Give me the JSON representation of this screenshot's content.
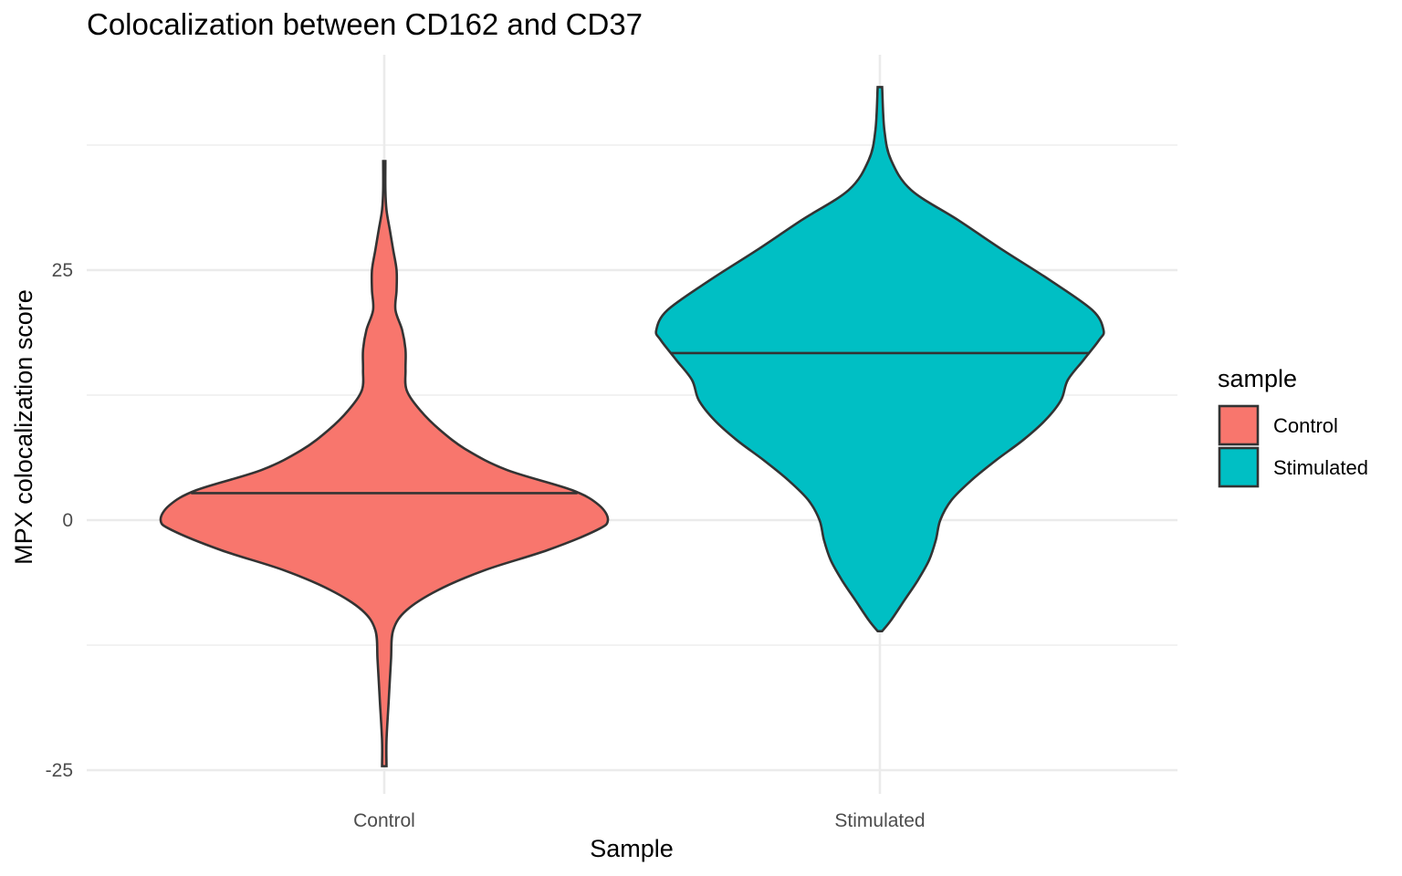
{
  "chart_data": {
    "type": "violin",
    "title": "Colocalization between CD162 and CD37",
    "xlabel": "Sample",
    "ylabel": "MPX colocalization score",
    "categories": [
      "Control",
      "Stimulated"
    ],
    "y_ticks": [
      -25,
      0,
      25
    ],
    "y_tick_labels": [
      "-25",
      "0",
      "25"
    ],
    "ylim": [
      -27.8,
      46.4
    ],
    "grid": true,
    "legend": {
      "title": "sample",
      "position": "right",
      "entries": [
        "Control",
        "Stimulated"
      ]
    },
    "colors": {
      "Control": "#F8766D",
      "Stimulated": "#00BFC4",
      "outline": "#333333",
      "grid": "#EBEBEB"
    },
    "series": [
      {
        "name": "Control",
        "median": 2.7,
        "min": -24.6,
        "max": 35.9,
        "density_profile": [
          [
            -24.6,
            0.01
          ],
          [
            -22.0,
            0.01
          ],
          [
            -18.0,
            0.02
          ],
          [
            -14.0,
            0.03
          ],
          [
            -11.0,
            0.04
          ],
          [
            -9.0,
            0.1
          ],
          [
            -7.0,
            0.24
          ],
          [
            -5.0,
            0.45
          ],
          [
            -3.0,
            0.73
          ],
          [
            -1.0,
            0.95
          ],
          [
            0.0,
            1.0
          ],
          [
            1.5,
            0.96
          ],
          [
            3.0,
            0.84
          ],
          [
            5.0,
            0.55
          ],
          [
            7.0,
            0.37
          ],
          [
            9.0,
            0.25
          ],
          [
            11.0,
            0.16
          ],
          [
            13.0,
            0.1
          ],
          [
            15.0,
            0.095
          ],
          [
            17.0,
            0.095
          ],
          [
            19.0,
            0.08
          ],
          [
            21.0,
            0.05
          ],
          [
            23.0,
            0.055
          ],
          [
            25.0,
            0.055
          ],
          [
            27.0,
            0.04
          ],
          [
            29.0,
            0.025
          ],
          [
            31.0,
            0.01
          ],
          [
            33.0,
            0.005
          ],
          [
            35.9,
            0.005
          ]
        ]
      },
      {
        "name": "Stimulated",
        "median": 16.7,
        "min": -11.1,
        "max": 43.3,
        "density_profile": [
          [
            -11.1,
            0.01
          ],
          [
            -10.0,
            0.05
          ],
          [
            -8.0,
            0.11
          ],
          [
            -6.0,
            0.17
          ],
          [
            -4.0,
            0.22
          ],
          [
            -2.0,
            0.25
          ],
          [
            0.0,
            0.27
          ],
          [
            2.0,
            0.32
          ],
          [
            4.0,
            0.41
          ],
          [
            6.0,
            0.52
          ],
          [
            8.0,
            0.64
          ],
          [
            10.0,
            0.74
          ],
          [
            12.0,
            0.81
          ],
          [
            14.0,
            0.84
          ],
          [
            16.0,
            0.91
          ],
          [
            18.0,
            0.98
          ],
          [
            19.0,
            1.0
          ],
          [
            21.0,
            0.95
          ],
          [
            24.0,
            0.76
          ],
          [
            27.0,
            0.55
          ],
          [
            30.0,
            0.35
          ],
          [
            33.0,
            0.14
          ],
          [
            36.0,
            0.05
          ],
          [
            39.0,
            0.02
          ],
          [
            43.3,
            0.01
          ]
        ]
      }
    ]
  }
}
